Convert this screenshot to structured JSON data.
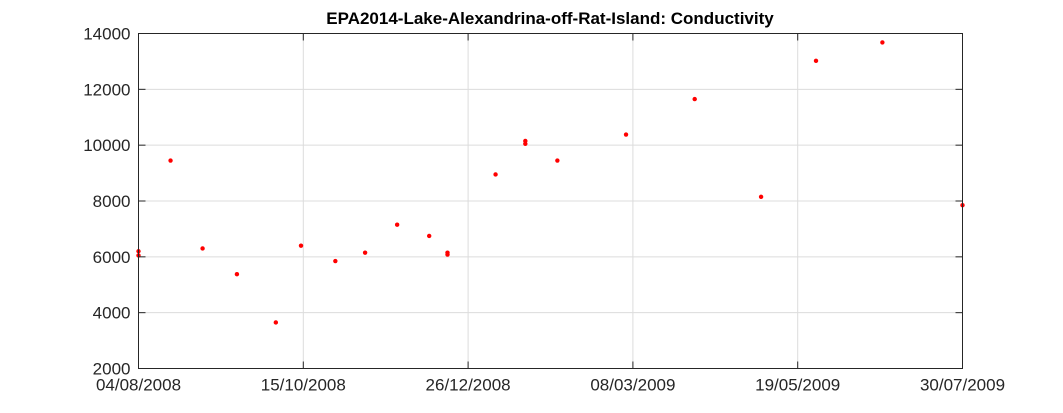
{
  "chart_data": {
    "type": "scatter",
    "title": "EPA2014-Lake-Alexandrina-off-Rat-Island: Conductivity",
    "xlabel": "",
    "ylabel": "",
    "x_axis": {
      "type": "date",
      "range": [
        "2008-08-04",
        "2009-07-30"
      ],
      "ticks": [
        {
          "date": "2008-08-04",
          "label": "04/08/2008"
        },
        {
          "date": "2008-10-15",
          "label": "15/10/2008"
        },
        {
          "date": "2008-12-26",
          "label": "26/12/2008"
        },
        {
          "date": "2009-03-08",
          "label": "08/03/2009"
        },
        {
          "date": "2009-05-19",
          "label": "19/05/2009"
        },
        {
          "date": "2009-07-30",
          "label": "30/07/2009"
        }
      ]
    },
    "ylim": [
      2000,
      14000
    ],
    "yticks": [
      2000,
      4000,
      6000,
      8000,
      10000,
      12000,
      14000
    ],
    "grid": true,
    "marker_color": "#ff0000",
    "series": [
      {
        "points": [
          {
            "x": "2008-08-04",
            "y": 6200
          },
          {
            "x": "2008-08-04",
            "y": 6050
          },
          {
            "x": "2008-08-18",
            "y": 9450
          },
          {
            "x": "2008-09-01",
            "y": 6300
          },
          {
            "x": "2008-09-16",
            "y": 5380
          },
          {
            "x": "2008-10-03",
            "y": 3650
          },
          {
            "x": "2008-10-14",
            "y": 6400
          },
          {
            "x": "2008-10-29",
            "y": 5850
          },
          {
            "x": "2008-11-11",
            "y": 6150
          },
          {
            "x": "2008-11-25",
            "y": 7150
          },
          {
            "x": "2008-12-09",
            "y": 6750
          },
          {
            "x": "2008-12-17",
            "y": 6150
          },
          {
            "x": "2008-12-17",
            "y": 6080
          },
          {
            "x": "2009-01-07",
            "y": 8950
          },
          {
            "x": "2009-01-20",
            "y": 10150
          },
          {
            "x": "2009-01-20",
            "y": 10050
          },
          {
            "x": "2009-02-03",
            "y": 9450
          },
          {
            "x": "2009-03-05",
            "y": 10380
          },
          {
            "x": "2009-04-04",
            "y": 11650
          },
          {
            "x": "2009-05-03",
            "y": 8150
          },
          {
            "x": "2009-05-27",
            "y": 13020
          },
          {
            "x": "2009-06-25",
            "y": 13680
          },
          {
            "x": "2009-07-30",
            "y": 7850
          }
        ]
      }
    ]
  }
}
